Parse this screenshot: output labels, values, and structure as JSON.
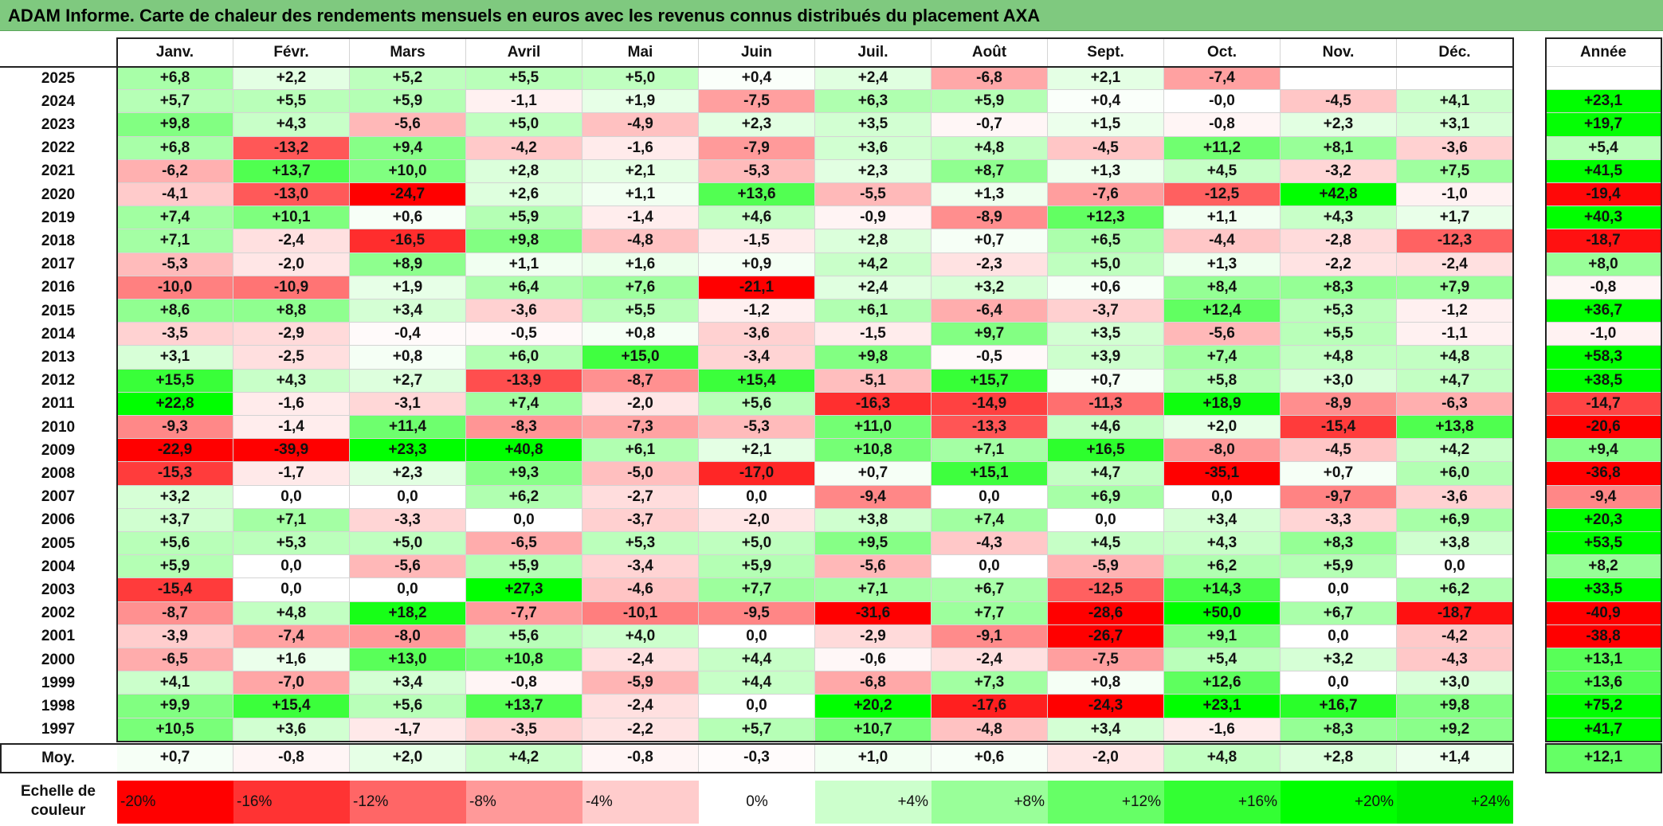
{
  "title": "ADAM Informe. Carte de chaleur des rendements mensuels en euros avec les revenus connus distribués du placement AXA",
  "chart_data": {
    "type": "heatmap",
    "title": "ADAM Informe. Carte de chaleur des rendements mensuels en euros avec les revenus connus distribués du placement AXA",
    "columns": [
      "Janv.",
      "Févr.",
      "Mars",
      "Avril",
      "Mai",
      "Juin",
      "Juil.",
      "Août",
      "Sept.",
      "Oct.",
      "Nov.",
      "Déc."
    ],
    "annual_header": "Année",
    "rows": [
      {
        "year": "2025",
        "values": [
          "+6,8",
          "+2,2",
          "+5,2",
          "+5,5",
          "+5,0",
          "+0,4",
          "+2,4",
          "-6,8",
          "+2,1",
          "-7,4",
          "",
          ""
        ],
        "annual": ""
      },
      {
        "year": "2024",
        "values": [
          "+5,7",
          "+5,5",
          "+5,9",
          "-1,1",
          "+1,9",
          "-7,5",
          "+6,3",
          "+5,9",
          "+0,4",
          "-0,0",
          "-4,5",
          "+4,1"
        ],
        "annual": "+23,1"
      },
      {
        "year": "2023",
        "values": [
          "+9,8",
          "+4,3",
          "-5,6",
          "+5,0",
          "-4,9",
          "+2,3",
          "+3,5",
          "-0,7",
          "+1,5",
          "-0,8",
          "+2,3",
          "+3,1"
        ],
        "annual": "+19,7"
      },
      {
        "year": "2022",
        "values": [
          "+6,8",
          "-13,2",
          "+9,4",
          "-4,2",
          "-1,6",
          "-7,9",
          "+3,6",
          "+4,8",
          "-4,5",
          "+11,2",
          "+8,1",
          "-3,6"
        ],
        "annual": "+5,4"
      },
      {
        "year": "2021",
        "values": [
          "-6,2",
          "+13,7",
          "+10,0",
          "+2,8",
          "+2,1",
          "-5,3",
          "+2,3",
          "+8,7",
          "+1,3",
          "+4,5",
          "-3,2",
          "+7,5"
        ],
        "annual": "+41,5"
      },
      {
        "year": "2020",
        "values": [
          "-4,1",
          "-13,0",
          "-24,7",
          "+2,6",
          "+1,1",
          "+13,6",
          "-5,5",
          "+1,3",
          "-7,6",
          "-12,5",
          "+42,8",
          "-1,0"
        ],
        "annual": "-19,4"
      },
      {
        "year": "2019",
        "values": [
          "+7,4",
          "+10,1",
          "+0,6",
          "+5,9",
          "-1,4",
          "+4,6",
          "-0,9",
          "-8,9",
          "+12,3",
          "+1,1",
          "+4,3",
          "+1,7"
        ],
        "annual": "+40,3"
      },
      {
        "year": "2018",
        "values": [
          "+7,1",
          "-2,4",
          "-16,5",
          "+9,8",
          "-4,8",
          "-1,5",
          "+2,8",
          "+0,7",
          "+6,5",
          "-4,4",
          "-2,8",
          "-12,3"
        ],
        "annual": "-18,7"
      },
      {
        "year": "2017",
        "values": [
          "-5,3",
          "-2,0",
          "+8,9",
          "+1,1",
          "+1,6",
          "+0,9",
          "+4,2",
          "-2,3",
          "+5,0",
          "+1,3",
          "-2,2",
          "-2,4"
        ],
        "annual": "+8,0"
      },
      {
        "year": "2016",
        "values": [
          "-10,0",
          "-10,9",
          "+1,9",
          "+6,4",
          "+7,6",
          "-21,1",
          "+2,4",
          "+3,2",
          "+0,6",
          "+8,4",
          "+8,3",
          "+7,9"
        ],
        "annual": "-0,8"
      },
      {
        "year": "2015",
        "values": [
          "+8,6",
          "+8,8",
          "+3,4",
          "-3,6",
          "+5,5",
          "-1,2",
          "+6,1",
          "-6,4",
          "-3,7",
          "+12,4",
          "+5,3",
          "-1,2"
        ],
        "annual": "+36,7"
      },
      {
        "year": "2014",
        "values": [
          "-3,5",
          "-2,9",
          "-0,4",
          "-0,5",
          "+0,8",
          "-3,6",
          "-1,5",
          "+9,7",
          "+3,5",
          "-5,6",
          "+5,5",
          "-1,1"
        ],
        "annual": "-1,0"
      },
      {
        "year": "2013",
        "values": [
          "+3,1",
          "-2,5",
          "+0,8",
          "+6,0",
          "+15,0",
          "-3,4",
          "+9,8",
          "-0,5",
          "+3,9",
          "+7,4",
          "+4,8",
          "+4,8"
        ],
        "annual": "+58,3"
      },
      {
        "year": "2012",
        "values": [
          "+15,5",
          "+4,3",
          "+2,7",
          "-13,9",
          "-8,7",
          "+15,4",
          "-5,1",
          "+15,7",
          "+0,7",
          "+5,8",
          "+3,0",
          "+4,7"
        ],
        "annual": "+38,5"
      },
      {
        "year": "2011",
        "values": [
          "+22,8",
          "-1,6",
          "-3,1",
          "+7,4",
          "-2,0",
          "+5,6",
          "-16,3",
          "-14,9",
          "-11,3",
          "+18,9",
          "-8,9",
          "-6,3"
        ],
        "annual": "-14,7"
      },
      {
        "year": "2010",
        "values": [
          "-9,3",
          "-1,4",
          "+11,4",
          "-8,3",
          "-7,3",
          "-5,3",
          "+11,0",
          "-13,3",
          "+4,6",
          "+2,0",
          "-15,4",
          "+13,8"
        ],
        "annual": "-20,6"
      },
      {
        "year": "2009",
        "values": [
          "-22,9",
          "-39,9",
          "+23,3",
          "+40,8",
          "+6,1",
          "+2,1",
          "+10,8",
          "+7,1",
          "+16,5",
          "-8,0",
          "-4,5",
          "+4,2"
        ],
        "annual": "+9,4"
      },
      {
        "year": "2008",
        "values": [
          "-15,3",
          "-1,7",
          "+2,3",
          "+9,3",
          "-5,0",
          "-17,0",
          "+0,7",
          "+15,1",
          "+4,7",
          "-35,1",
          "+0,7",
          "+6,0"
        ],
        "annual": "-36,8"
      },
      {
        "year": "2007",
        "values": [
          "+3,2",
          "0,0",
          "0,0",
          "+6,2",
          "-2,7",
          "0,0",
          "-9,4",
          "0,0",
          "+6,9",
          "0,0",
          "-9,7",
          "-3,6"
        ],
        "annual": "-9,4"
      },
      {
        "year": "2006",
        "values": [
          "+3,7",
          "+7,1",
          "-3,3",
          "0,0",
          "-3,7",
          "-2,0",
          "+3,8",
          "+7,4",
          "0,0",
          "+3,4",
          "-3,3",
          "+6,9"
        ],
        "annual": "+20,3"
      },
      {
        "year": "2005",
        "values": [
          "+5,6",
          "+5,3",
          "+5,0",
          "-6,5",
          "+5,3",
          "+5,0",
          "+9,5",
          "-4,3",
          "+4,5",
          "+4,3",
          "+8,3",
          "+3,8"
        ],
        "annual": "+53,5"
      },
      {
        "year": "2004",
        "values": [
          "+5,9",
          "0,0",
          "-5,6",
          "+5,9",
          "-3,4",
          "+5,9",
          "-5,6",
          "0,0",
          "-5,9",
          "+6,2",
          "+5,9",
          "0,0"
        ],
        "annual": "+8,2"
      },
      {
        "year": "2003",
        "values": [
          "-15,4",
          "0,0",
          "0,0",
          "+27,3",
          "-4,6",
          "+7,7",
          "+7,1",
          "+6,7",
          "-12,5",
          "+14,3",
          "0,0",
          "+6,2"
        ],
        "annual": "+33,5"
      },
      {
        "year": "2002",
        "values": [
          "-8,7",
          "+4,8",
          "+18,2",
          "-7,7",
          "-10,1",
          "-9,5",
          "-31,6",
          "+7,7",
          "-28,6",
          "+50,0",
          "+6,7",
          "-18,7"
        ],
        "annual": "-40,9"
      },
      {
        "year": "2001",
        "values": [
          "-3,9",
          "-7,4",
          "-8,0",
          "+5,6",
          "+4,0",
          "0,0",
          "-2,9",
          "-9,1",
          "-26,7",
          "+9,1",
          "0,0",
          "-4,2"
        ],
        "annual": "-38,8"
      },
      {
        "year": "2000",
        "values": [
          "-6,5",
          "+1,6",
          "+13,0",
          "+10,8",
          "-2,4",
          "+4,4",
          "-0,6",
          "-2,4",
          "-7,5",
          "+5,4",
          "+3,2",
          "-4,3"
        ],
        "annual": "+13,1"
      },
      {
        "year": "1999",
        "values": [
          "+4,1",
          "-7,0",
          "+3,4",
          "-0,8",
          "-5,9",
          "+4,4",
          "-6,8",
          "+7,3",
          "+0,8",
          "+12,6",
          "0,0",
          "+3,0"
        ],
        "annual": "+13,6"
      },
      {
        "year": "1998",
        "values": [
          "+9,9",
          "+15,4",
          "+5,6",
          "+13,7",
          "-2,4",
          "0,0",
          "+20,2",
          "-17,6",
          "-24,3",
          "+23,1",
          "+16,7",
          "+9,8"
        ],
        "annual": "+75,2"
      },
      {
        "year": "1997",
        "values": [
          "+10,5",
          "+3,6",
          "-1,7",
          "-3,5",
          "-2,2",
          "+5,7",
          "+10,7",
          "-4,8",
          "+3,4",
          "-1,6",
          "+8,3",
          "+9,2"
        ],
        "annual": "+41,7"
      }
    ],
    "average": {
      "label": "Moy.",
      "values": [
        "+0,7",
        "-0,8",
        "+2,0",
        "+4,2",
        "-0,8",
        "-0,3",
        "+1,0",
        "+0,6",
        "-2,0",
        "+4,8",
        "+2,8",
        "+1,4"
      ],
      "annual": "+12,1"
    },
    "scale": {
      "label_line1": "Echelle de",
      "label_line2": "couleur",
      "steps": [
        {
          "label": "-20%",
          "color": "#ff0000"
        },
        {
          "label": "-16%",
          "color": "#ff3333"
        },
        {
          "label": "-12%",
          "color": "#ff6666"
        },
        {
          "label": "-8%",
          "color": "#ff9999"
        },
        {
          "label": "-4%",
          "color": "#ffcccc"
        },
        {
          "label": "0%",
          "color": "#ffffff"
        },
        {
          "label": "+4%",
          "color": "#ccffcc"
        },
        {
          "label": "+8%",
          "color": "#99ff99"
        },
        {
          "label": "+12%",
          "color": "#66ff66"
        },
        {
          "label": "+16%",
          "color": "#33ff33"
        },
        {
          "label": "+20%",
          "color": "#00ff00"
        },
        {
          "label": "+24%",
          "color": "#00ee00"
        }
      ]
    },
    "color_scale": {
      "min_color": "#ff0000",
      "mid_color": "#ffffff",
      "max_color": "#00ff00",
      "saturation_at": 20
    }
  }
}
